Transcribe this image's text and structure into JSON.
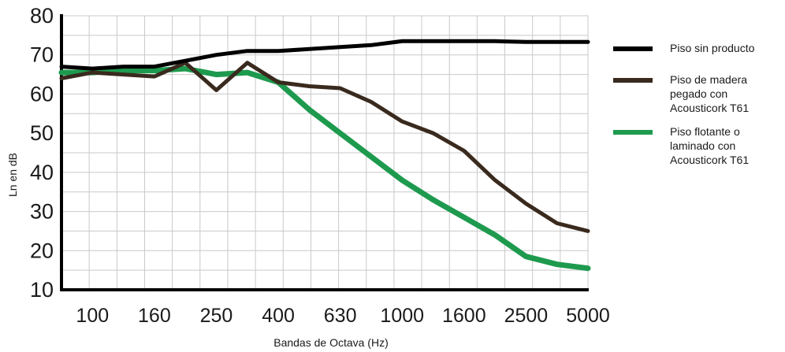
{
  "chart_data": {
    "type": "line",
    "title": "",
    "xlabel": "Bandas de Octava (Hz)",
    "ylabel": "Ln en dB",
    "ylim": [
      10,
      80
    ],
    "yticks": [
      10,
      20,
      30,
      40,
      50,
      60,
      70,
      80
    ],
    "x": [
      "",
      "100",
      "125",
      "160",
      "200",
      "250",
      "315",
      "400",
      "500",
      "630",
      "800",
      "1000",
      "1250",
      "1600",
      "2000",
      "2500",
      "3150",
      "5000"
    ],
    "x_tick_labels": [
      "100",
      "160",
      "250",
      "400",
      "630",
      "1000",
      "1600",
      "2500",
      "5000"
    ],
    "grid": true,
    "legend_position": "right",
    "series": [
      {
        "name": "Piso sin producto",
        "color": "#000000",
        "values": [
          67,
          66.5,
          67,
          67,
          68.5,
          70,
          71,
          71,
          71.5,
          72,
          72.5,
          73.5,
          73.5,
          73.5,
          73.5,
          73.3,
          73.3,
          73.3
        ]
      },
      {
        "name": "Piso de madera\npegado con\nAcousticork T61",
        "color": "#3a2a1e",
        "values": [
          64,
          65.5,
          65,
          64.5,
          68,
          61,
          68,
          63,
          62,
          61.5,
          58,
          53,
          50,
          45.5,
          38,
          32,
          27,
          25
        ]
      },
      {
        "name": "Piso flotante o\nlaminado con\nAcousticork T61",
        "color": "#1e9a4e",
        "values": [
          65.5,
          65.5,
          66,
          66,
          66.5,
          65,
          65.5,
          63,
          56,
          50,
          44,
          38,
          33,
          28.5,
          24,
          18.5,
          16.5,
          15.5
        ]
      }
    ]
  }
}
